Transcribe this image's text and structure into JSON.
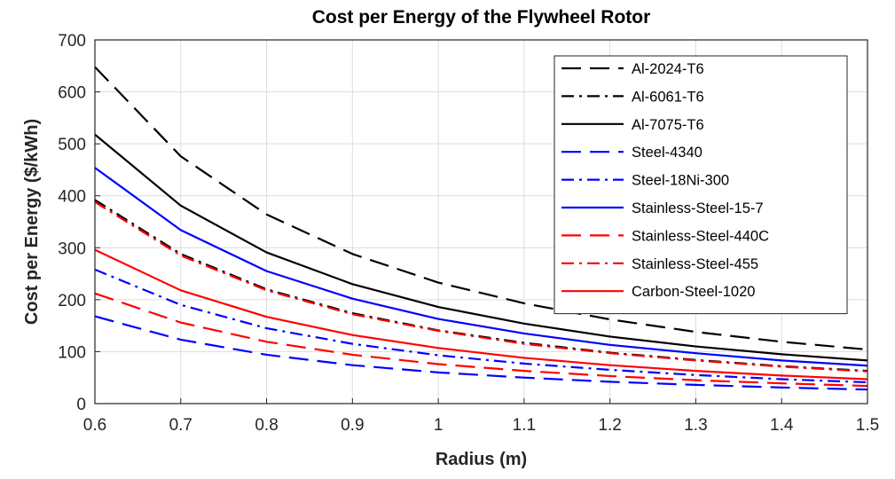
{
  "chart_data": {
    "type": "line",
    "title": "Cost per Energy of the Flywheel Rotor",
    "xlabel": "Radius (m)",
    "ylabel": "Cost per Energy ($/kWh)",
    "xlim": [
      0.6,
      1.5
    ],
    "ylim": [
      0,
      700
    ],
    "x_ticks": [
      "0.6",
      "0.7",
      "0.8",
      "0.9",
      "1",
      "1.1",
      "1.2",
      "1.3",
      "1.4",
      "1.5"
    ],
    "y_ticks": [
      "0",
      "100",
      "200",
      "300",
      "400",
      "500",
      "600",
      "700"
    ],
    "grid": true,
    "legend_position": "top-right",
    "x": [
      0.6,
      0.7,
      0.8,
      0.9,
      1.0,
      1.1,
      1.2,
      1.3,
      1.4,
      1.5
    ],
    "series": [
      {
        "name": "Al-2024-T6",
        "color": "#000000",
        "dash": "long-dash",
        "values": [
          648,
          476,
          364,
          288,
          233,
          193,
          162,
          138,
          119,
          104
        ]
      },
      {
        "name": "Al-6061-T6",
        "color": "#000000",
        "dash": "dash-dot",
        "values": [
          392,
          288,
          220,
          174,
          141,
          117,
          98,
          84,
          72,
          63
        ]
      },
      {
        "name": "Al-7075-T6",
        "color": "#000000",
        "dash": "solid",
        "values": [
          518,
          381,
          291,
          230,
          186,
          154,
          129,
          110,
          95,
          83
        ]
      },
      {
        "name": "Steel-4340",
        "color": "#0000ff",
        "dash": "long-dash",
        "values": [
          168,
          123,
          94,
          74,
          60,
          50,
          42,
          36,
          31,
          27
        ]
      },
      {
        "name": "Steel-18Ni-300",
        "color": "#0000ff",
        "dash": "dash-dot",
        "values": [
          258,
          190,
          145,
          115,
          93,
          77,
          65,
          55,
          47,
          41
        ]
      },
      {
        "name": "Stainless-Steel-15-7",
        "color": "#0000ff",
        "dash": "solid",
        "values": [
          454,
          334,
          255,
          202,
          163,
          135,
          113,
          97,
          83,
          73
        ]
      },
      {
        "name": "Stainless-Steel-440C",
        "color": "#ff0000",
        "dash": "long-dash",
        "values": [
          212,
          156,
          119,
          94,
          76,
          63,
          53,
          45,
          39,
          34
        ]
      },
      {
        "name": "Stainless-Steel-455",
        "color": "#ff0000",
        "dash": "dash-dot",
        "values": [
          388,
          285,
          218,
          172,
          140,
          115,
          97,
          83,
          71,
          62
        ]
      },
      {
        "name": "Carbon-Steel-1020",
        "color": "#ff0000",
        "dash": "solid",
        "values": [
          296,
          218,
          167,
          132,
          107,
          88,
          74,
          63,
          54,
          47
        ]
      }
    ]
  }
}
